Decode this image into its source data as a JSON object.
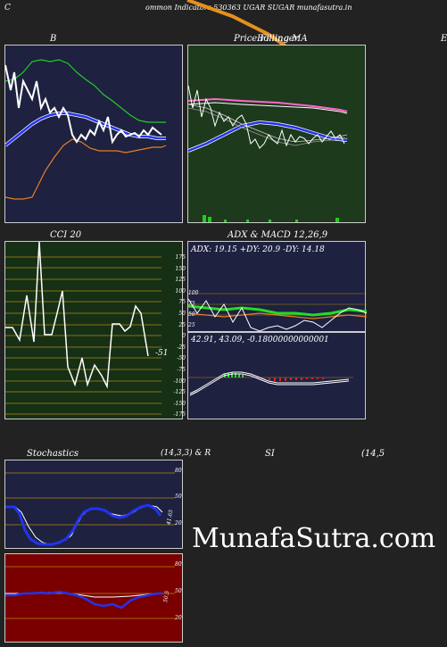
{
  "header": {
    "left_letter": "C",
    "title": "ommon  Indicators 530363 UGAR SUGAR munafasutra.in"
  },
  "panels": {
    "bollinger": {
      "title": "B"
    },
    "price_ma": {
      "title": "Price   Filling   MA",
      "title_overlap": "Bollinger",
      "right_letter": "E"
    },
    "cci": {
      "title": "CCI 20",
      "current_value": "-51",
      "scale": [
        "175",
        "150",
        "125",
        "100",
        "75",
        "50",
        "25",
        "0",
        "-25",
        "-50",
        "-75",
        "-100",
        "-125",
        "-150",
        "-175"
      ]
    },
    "adx": {
      "title": "ADX  & MACD 12,26,9",
      "readout": "ADX: 19.15  +DY: 20.9  -DY: 14.18",
      "scale": [
        "100",
        "75",
        "50",
        "25"
      ]
    },
    "macd": {
      "readout": "42.91,  43.09,  -0.18000000000001"
    },
    "stochastics": {
      "title": "Stochastics",
      "params": "(14,3,3) & R",
      "scale": [
        "80",
        "50",
        "20"
      ],
      "current_value": "41.65"
    },
    "rsi": {
      "title": "SI",
      "params": "(14,5",
      "scale": [
        "80",
        "50",
        "20"
      ],
      "current_value": "50.5"
    }
  },
  "watermark": "MunafaSutra.com",
  "colors": {
    "bollinger_bg": "#1e2140",
    "price_bg": "#1d3a1d",
    "cci_bg": "#163016",
    "adx_bg": "#1e2140",
    "stoch_bg": "#1e2140",
    "rsi_bg": "#7a0000",
    "grid_orange": "#b8860b"
  }
}
